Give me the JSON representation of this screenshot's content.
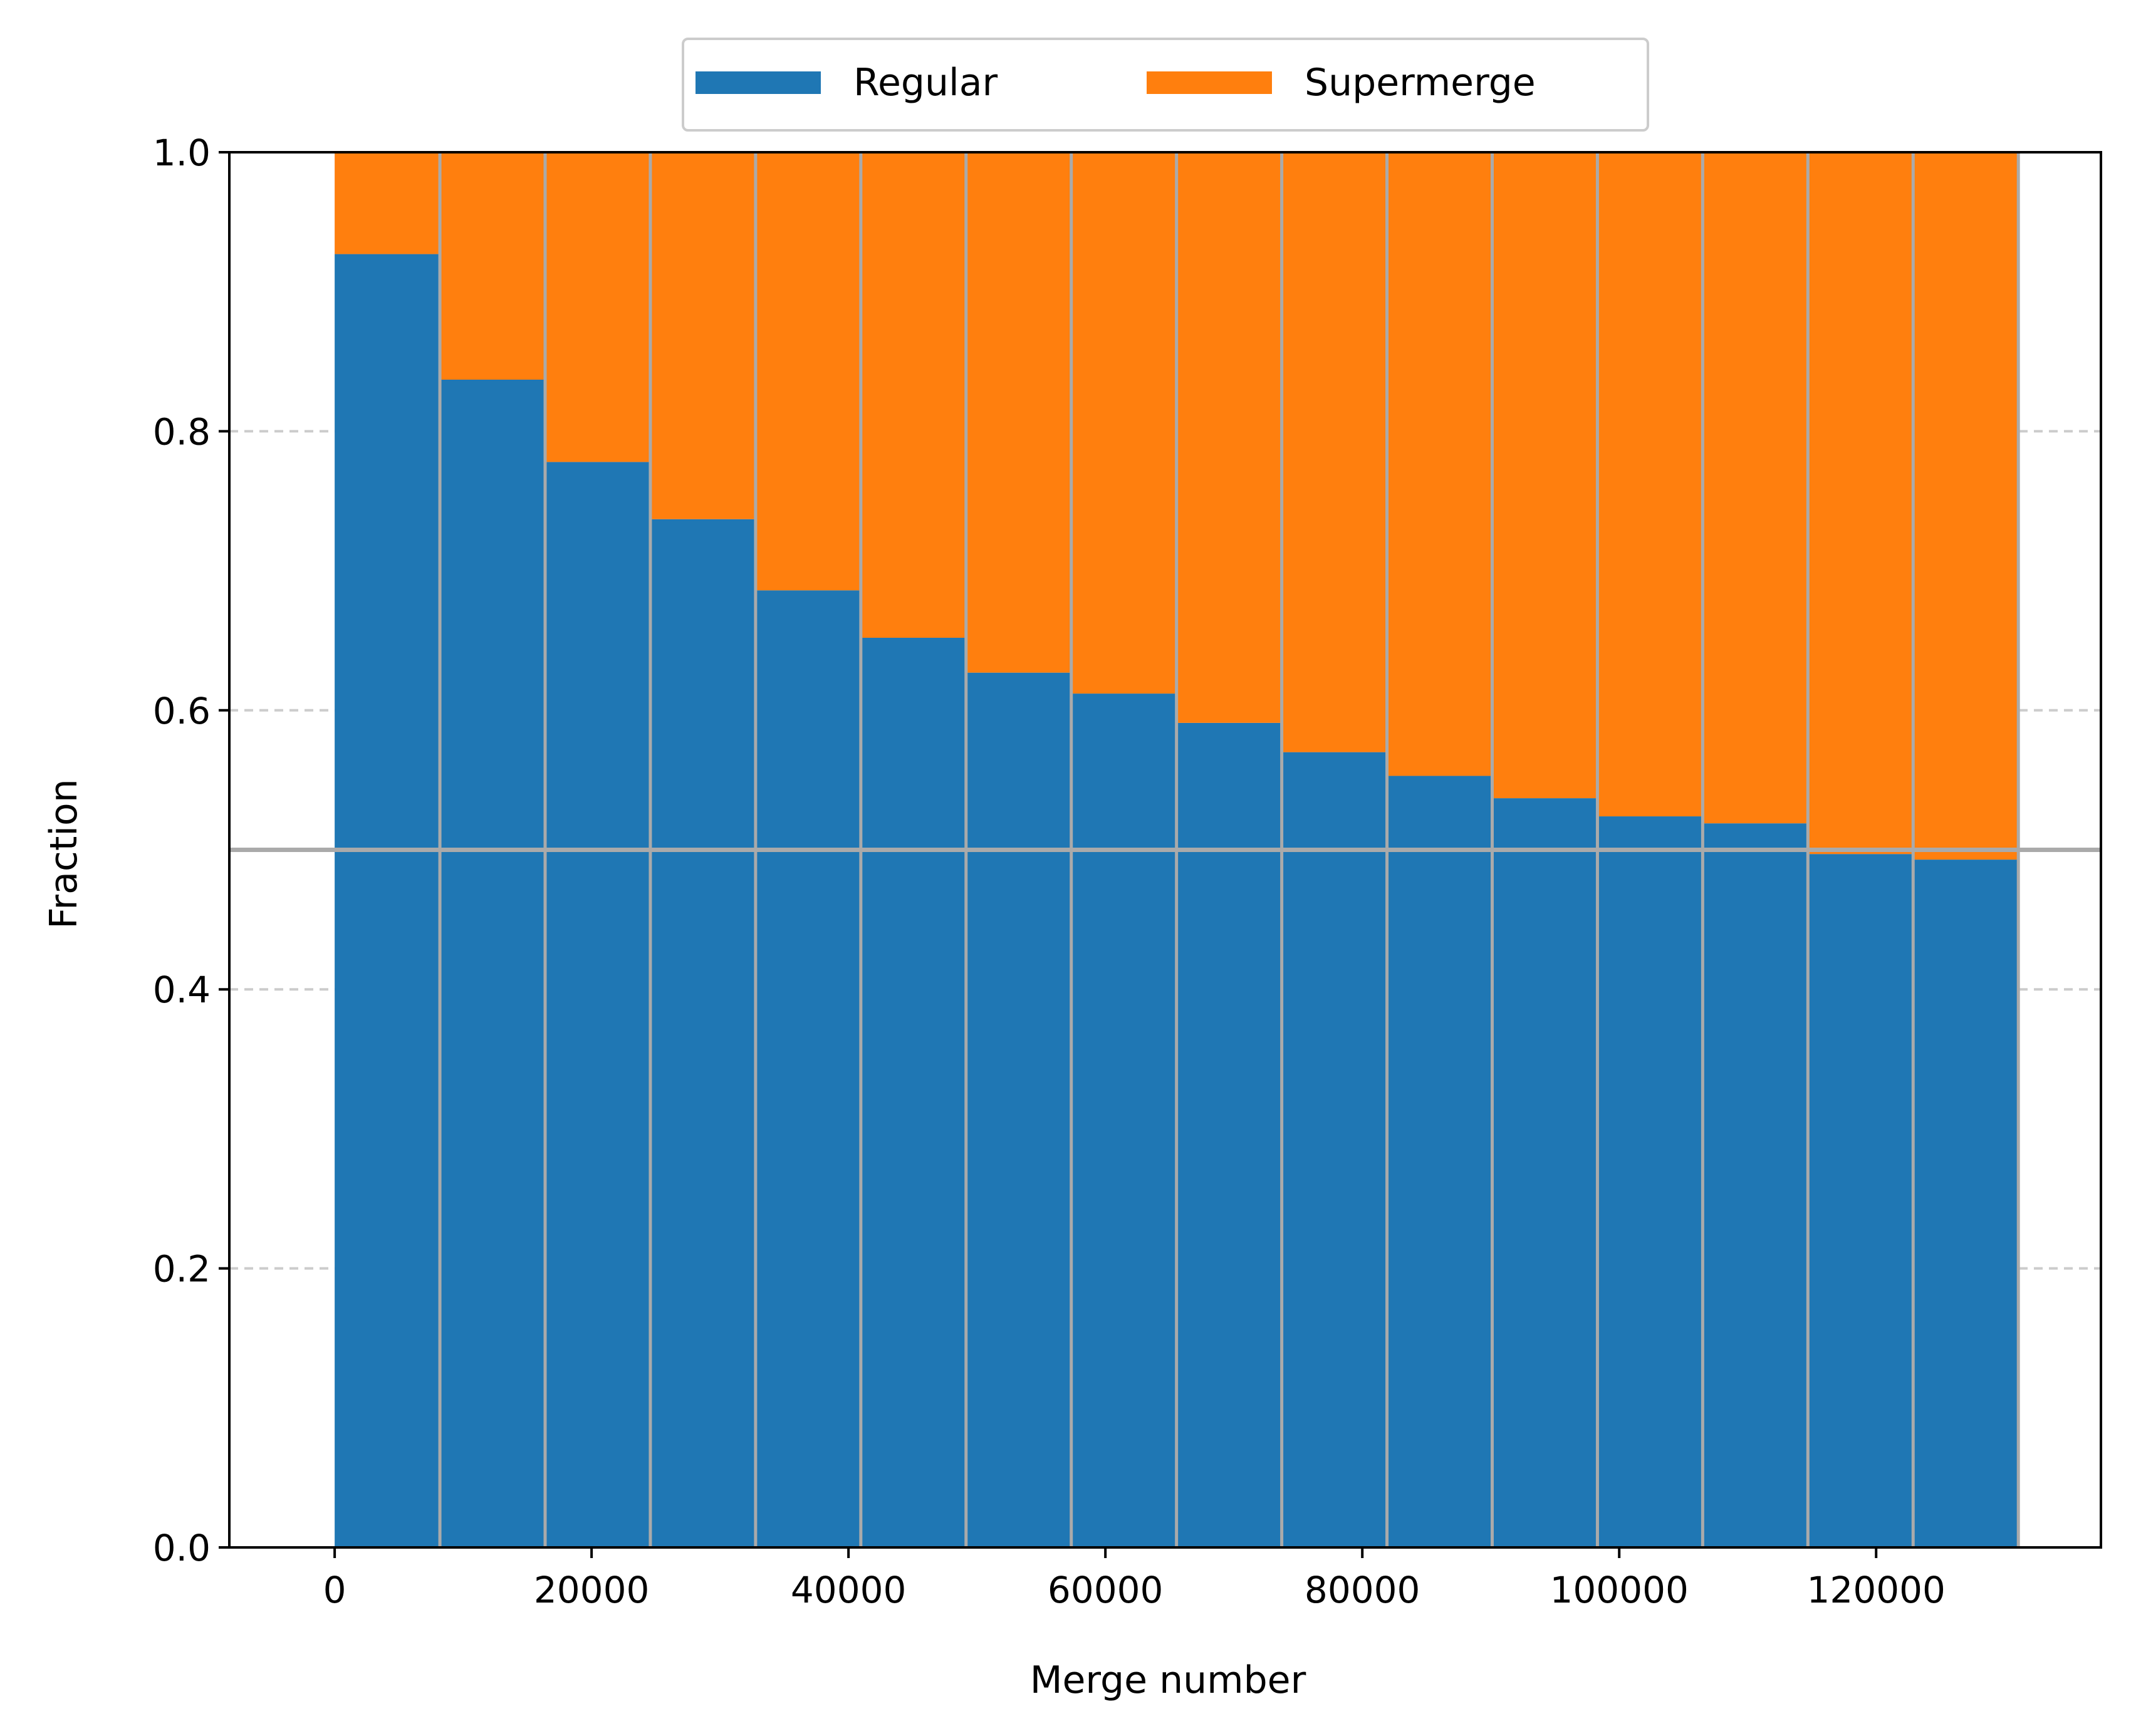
{
  "chart_data": {
    "type": "bar",
    "stacked": true,
    "title": "",
    "xlabel": "Merge number",
    "ylabel": "Fraction",
    "xlim": [
      -8200,
      137500
    ],
    "ylim": [
      0.0,
      1.0
    ],
    "bin_width": 8192,
    "x": [
      0,
      8192,
      16384,
      24576,
      32768,
      40960,
      49152,
      57344,
      65536,
      73728,
      81920,
      90112,
      98304,
      106496,
      114688,
      122880
    ],
    "xticks": [
      0,
      20000,
      40000,
      60000,
      80000,
      100000,
      120000
    ],
    "xtick_labels": [
      "0",
      "20000",
      "40000",
      "60000",
      "80000",
      "100000",
      "120000"
    ],
    "yticks": [
      0.0,
      0.2,
      0.4,
      0.6,
      0.8,
      1.0
    ],
    "ytick_labels": [
      "0.0",
      "0.2",
      "0.4",
      "0.6",
      "0.8",
      "1.0"
    ],
    "series": [
      {
        "name": "Regular",
        "color": "#1f77b4",
        "values": [
          0.927,
          0.837,
          0.778,
          0.737,
          0.686,
          0.652,
          0.627,
          0.612,
          0.591,
          0.57,
          0.553,
          0.537,
          0.524,
          0.519,
          0.497,
          0.493
        ]
      },
      {
        "name": "Supermerge",
        "color": "#ff7f0e",
        "values": [
          0.073,
          0.163,
          0.222,
          0.263,
          0.314,
          0.348,
          0.373,
          0.388,
          0.409,
          0.43,
          0.447,
          0.463,
          0.476,
          0.481,
          0.503,
          0.507
        ]
      }
    ],
    "reference_line": {
      "y": 0.5,
      "color": "#aaaaaa"
    },
    "grid": {
      "y": true,
      "style": "dashed",
      "color": "#cccccc"
    },
    "legend": {
      "position": "top-center",
      "columns": 2
    }
  }
}
